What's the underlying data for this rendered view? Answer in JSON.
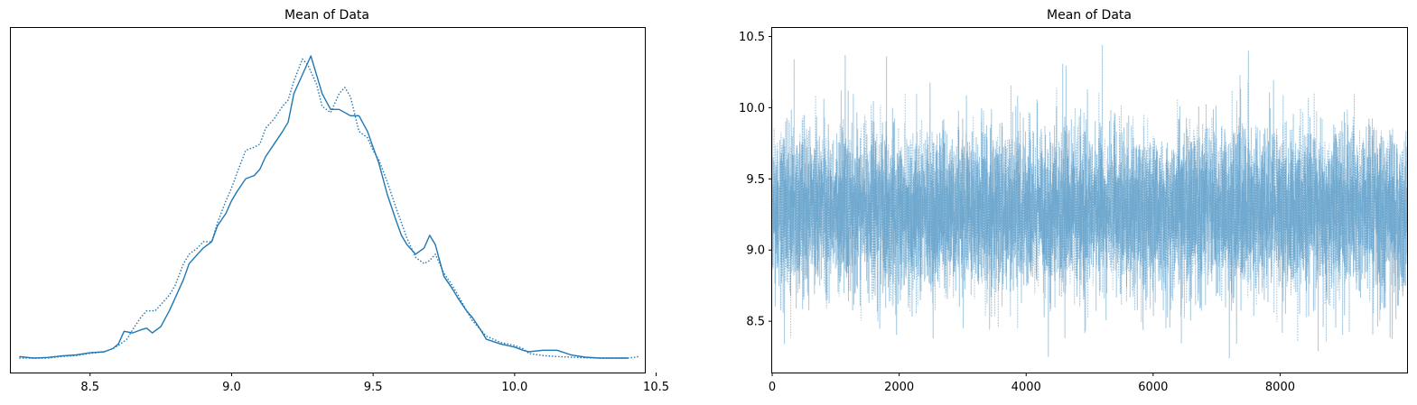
{
  "chart_data": [
    {
      "type": "line",
      "title": "Mean of Data",
      "xlabel": "",
      "ylabel": "",
      "xlim": [
        8.22,
        10.46
      ],
      "ylim": [
        0,
        1.0
      ],
      "xticks": [
        8.5,
        9.0,
        9.5,
        10.0,
        10.5
      ],
      "xtick_labels": [
        "8.5",
        "9.0",
        "9.5",
        "10.0",
        "10.5"
      ],
      "yticks": [],
      "grid": false,
      "line_color": "#1f77b4",
      "series": [
        {
          "style": "solid",
          "x": [
            8.25,
            8.3,
            8.35,
            8.4,
            8.45,
            8.5,
            8.55,
            8.58,
            8.6,
            8.62,
            8.65,
            8.68,
            8.7,
            8.72,
            8.75,
            8.78,
            8.8,
            8.83,
            8.85,
            8.88,
            8.9,
            8.93,
            8.95,
            8.98,
            9.0,
            9.02,
            9.05,
            9.08,
            9.1,
            9.12,
            9.15,
            9.18,
            9.2,
            9.22,
            9.25,
            9.27,
            9.28,
            9.3,
            9.32,
            9.35,
            9.38,
            9.4,
            9.42,
            9.45,
            9.48,
            9.5,
            9.52,
            9.55,
            9.58,
            9.6,
            9.62,
            9.65,
            9.68,
            9.7,
            9.72,
            9.75,
            9.78,
            9.8,
            9.83,
            9.85,
            9.88,
            9.9,
            9.95,
            10.0,
            10.03,
            10.05,
            10.1,
            10.15,
            10.2,
            10.25,
            10.3,
            10.35,
            10.4
          ],
          "y": [
            0.005,
            0.0,
            0.002,
            0.007,
            0.01,
            0.017,
            0.02,
            0.03,
            0.045,
            0.085,
            0.08,
            0.09,
            0.095,
            0.08,
            0.1,
            0.15,
            0.19,
            0.25,
            0.3,
            0.33,
            0.35,
            0.37,
            0.42,
            0.46,
            0.5,
            0.53,
            0.57,
            0.58,
            0.6,
            0.64,
            0.68,
            0.72,
            0.75,
            0.84,
            0.9,
            0.94,
            0.96,
            0.9,
            0.84,
            0.79,
            0.79,
            0.78,
            0.77,
            0.77,
            0.72,
            0.67,
            0.62,
            0.52,
            0.44,
            0.39,
            0.36,
            0.33,
            0.35,
            0.39,
            0.36,
            0.26,
            0.22,
            0.19,
            0.15,
            0.13,
            0.09,
            0.06,
            0.045,
            0.035,
            0.025,
            0.02,
            0.025,
            0.025,
            0.01,
            0.003,
            0.0,
            0.0,
            0.0
          ]
        },
        {
          "style": "dotted",
          "x": [
            8.25,
            8.3,
            8.35,
            8.4,
            8.45,
            8.5,
            8.55,
            8.58,
            8.6,
            8.63,
            8.65,
            8.68,
            8.7,
            8.73,
            8.75,
            8.78,
            8.8,
            8.83,
            8.85,
            8.88,
            8.9,
            8.93,
            8.95,
            8.98,
            9.0,
            9.02,
            9.05,
            9.08,
            9.1,
            9.12,
            9.15,
            9.18,
            9.2,
            9.22,
            9.25,
            9.27,
            9.3,
            9.32,
            9.35,
            9.38,
            9.4,
            9.42,
            9.45,
            9.48,
            9.5,
            9.52,
            9.55,
            9.58,
            9.6,
            9.62,
            9.65,
            9.68,
            9.7,
            9.72,
            9.75,
            9.78,
            9.8,
            9.83,
            9.85,
            9.88,
            9.9,
            9.95,
            10.0,
            10.03,
            10.05,
            10.1,
            10.15,
            10.2,
            10.25,
            10.3,
            10.35,
            10.4,
            10.44
          ],
          "y": [
            0.0,
            0.0,
            0.0,
            0.005,
            0.008,
            0.015,
            0.02,
            0.03,
            0.04,
            0.06,
            0.09,
            0.13,
            0.15,
            0.15,
            0.17,
            0.2,
            0.23,
            0.3,
            0.33,
            0.35,
            0.37,
            0.37,
            0.43,
            0.5,
            0.54,
            0.59,
            0.66,
            0.67,
            0.68,
            0.73,
            0.76,
            0.8,
            0.82,
            0.88,
            0.95,
            0.93,
            0.87,
            0.8,
            0.78,
            0.84,
            0.86,
            0.83,
            0.72,
            0.7,
            0.66,
            0.63,
            0.56,
            0.48,
            0.43,
            0.38,
            0.32,
            0.3,
            0.31,
            0.33,
            0.27,
            0.23,
            0.2,
            0.15,
            0.12,
            0.09,
            0.07,
            0.05,
            0.04,
            0.03,
            0.015,
            0.008,
            0.005,
            0.003,
            0.001,
            0.0,
            0.0,
            0.0,
            0.005
          ]
        }
      ]
    },
    {
      "type": "line",
      "title": "Mean of Data",
      "xlabel": "",
      "ylabel": "",
      "xlim": [
        0,
        9999
      ],
      "ylim": [
        8.14,
        10.56
      ],
      "xticks": [
        0,
        2000,
        4000,
        6000,
        8000
      ],
      "xtick_labels": [
        "0",
        "2000",
        "4000",
        "6000",
        "8000"
      ],
      "yticks": [
        8.5,
        9.0,
        9.5,
        10.0,
        10.5
      ],
      "ytick_labels": [
        "8.5",
        "9.0",
        "9.5",
        "10.0",
        "10.5"
      ],
      "grid": false,
      "line_color": "#1f77b4",
      "alpha": 0.4,
      "num_samples": 10000,
      "chains": 2,
      "mean": 9.28,
      "sd": 0.28,
      "min": 8.24,
      "max": 10.44,
      "notable_points": [
        {
          "chain": "dotted",
          "x": 5200,
          "y": 10.44
        },
        {
          "chain": "solid",
          "x": 7500,
          "y": 10.4
        },
        {
          "chain": "solid",
          "x": 1150,
          "y": 10.37
        },
        {
          "chain": "dotted",
          "x": 1800,
          "y": 10.36
        },
        {
          "chain": "solid",
          "x": 4350,
          "y": 8.25
        },
        {
          "chain": "solid",
          "x": 7200,
          "y": 8.24
        },
        {
          "chain": "dotted",
          "x": 8600,
          "y": 8.29
        }
      ]
    }
  ]
}
